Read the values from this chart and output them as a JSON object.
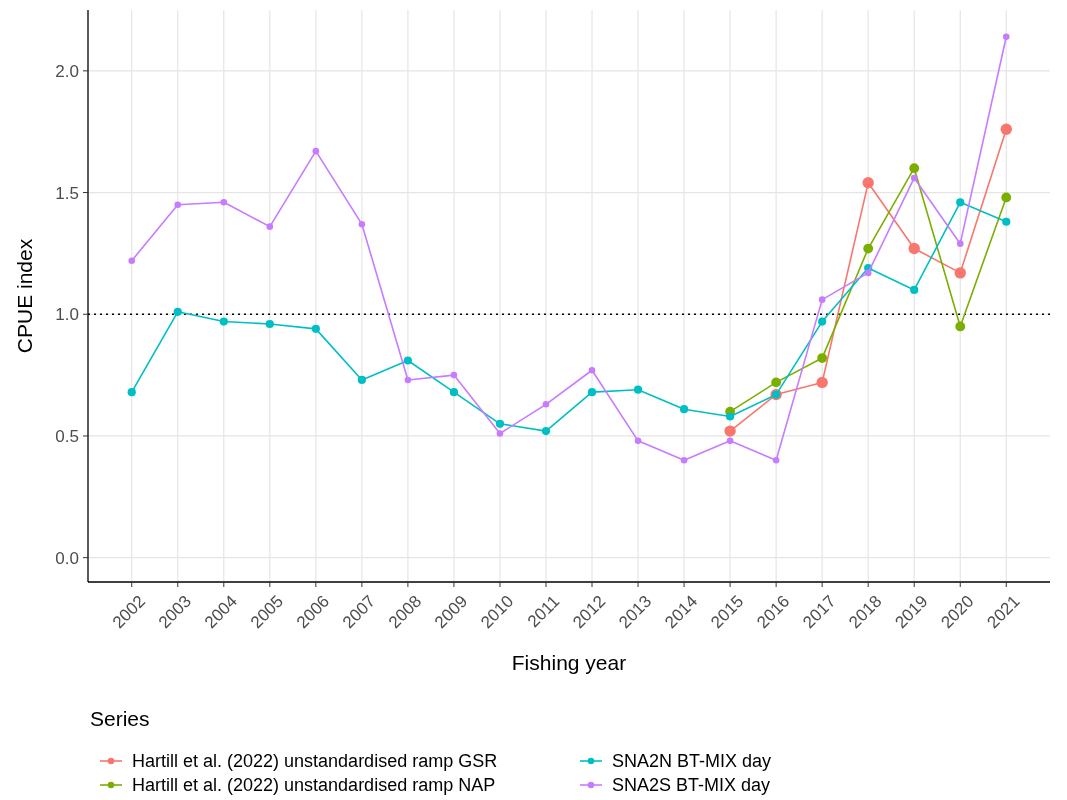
{
  "chart_data": {
    "type": "line",
    "xlabel": "Fishing year",
    "ylabel": "CPUE index",
    "legend_title": "Series",
    "categories": [
      "2002",
      "2003",
      "2004",
      "2005",
      "2006",
      "2007",
      "2008",
      "2009",
      "2010",
      "2011",
      "2012",
      "2013",
      "2014",
      "2015",
      "2016",
      "2017",
      "2018",
      "2019",
      "2020",
      "2021"
    ],
    "series": [
      {
        "name": "Hartill et al. (2022) unstandardised ramp GSR",
        "color": "#f8766d",
        "values": [
          null,
          null,
          null,
          null,
          null,
          null,
          null,
          null,
          null,
          null,
          null,
          null,
          null,
          0.52,
          0.67,
          0.72,
          1.54,
          1.27,
          1.17,
          1.76
        ]
      },
      {
        "name": "Hartill et al. (2022) unstandardised ramp NAP",
        "color": "#7cae00",
        "values": [
          null,
          null,
          null,
          null,
          null,
          null,
          null,
          null,
          null,
          null,
          null,
          null,
          null,
          0.6,
          0.72,
          0.82,
          1.27,
          1.6,
          0.95,
          1.48
        ]
      },
      {
        "name": "SNA2N BT-MIX day",
        "color": "#00bfc4",
        "values": [
          0.68,
          1.01,
          0.97,
          0.96,
          0.94,
          0.73,
          0.81,
          0.68,
          0.55,
          0.52,
          0.68,
          0.69,
          0.61,
          0.58,
          0.67,
          0.97,
          1.19,
          1.1,
          1.46,
          1.38
        ]
      },
      {
        "name": "SNA2S BT-MIX day",
        "color": "#c77cff",
        "values": [
          1.22,
          1.45,
          1.46,
          1.36,
          1.67,
          1.37,
          0.73,
          0.75,
          0.51,
          0.63,
          0.77,
          0.48,
          0.4,
          0.48,
          0.4,
          1.06,
          1.17,
          1.56,
          1.29,
          2.14
        ]
      }
    ],
    "ylim": [
      -0.1,
      2.25
    ],
    "yticks": [
      {
        "value": 0,
        "label": "0.0"
      },
      0.5,
      {
        "value": 1,
        "label": "1.0"
      },
      1.5,
      {
        "value": 2,
        "label": "2.0"
      }
    ],
    "ref_lines": [
      {
        "axis": "y",
        "value": 1,
        "line_style": "dotted",
        "color": "#000000"
      }
    ],
    "grid": true,
    "legend": "bottom",
    "marker": "circle",
    "line_style": "solid"
  }
}
